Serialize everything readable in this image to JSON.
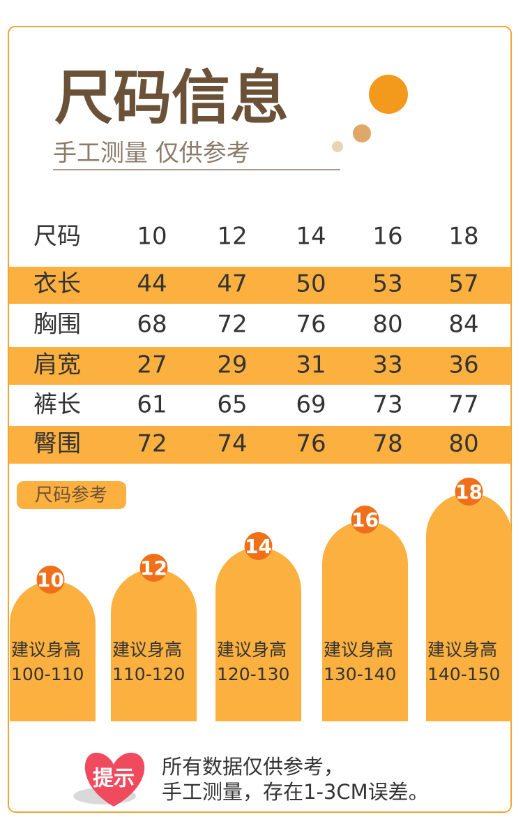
{
  "header": {
    "title": "尺码信息",
    "subtitle": "手工测量 仅供参考"
  },
  "table": {
    "header": [
      "尺码",
      "10",
      "12",
      "14",
      "16",
      "18"
    ],
    "rows": [
      [
        "衣长",
        "44",
        "47",
        "50",
        "53",
        "57"
      ],
      [
        "胸围",
        "68",
        "72",
        "76",
        "80",
        "84"
      ],
      [
        "肩宽",
        "27",
        "29",
        "31",
        "33",
        "36"
      ],
      [
        "裤长",
        "61",
        "65",
        "69",
        "73",
        "77"
      ],
      [
        "臀围",
        "72",
        "74",
        "76",
        "78",
        "80"
      ]
    ]
  },
  "reference": {
    "label": "尺码参考",
    "cards": [
      {
        "size": "10",
        "label": "建议身高",
        "range": "100-110"
      },
      {
        "size": "12",
        "label": "建议身高",
        "range": "110-120"
      },
      {
        "size": "14",
        "label": "建议身高",
        "range": "120-130"
      },
      {
        "size": "16",
        "label": "建议身高",
        "range": "130-140"
      },
      {
        "size": "18",
        "label": "建议身高",
        "range": "140-150"
      }
    ]
  },
  "tip": {
    "badge": "提示",
    "lines": [
      "所有数据仅供参考，",
      "手工测量，存在1-3CM误差。"
    ]
  }
}
